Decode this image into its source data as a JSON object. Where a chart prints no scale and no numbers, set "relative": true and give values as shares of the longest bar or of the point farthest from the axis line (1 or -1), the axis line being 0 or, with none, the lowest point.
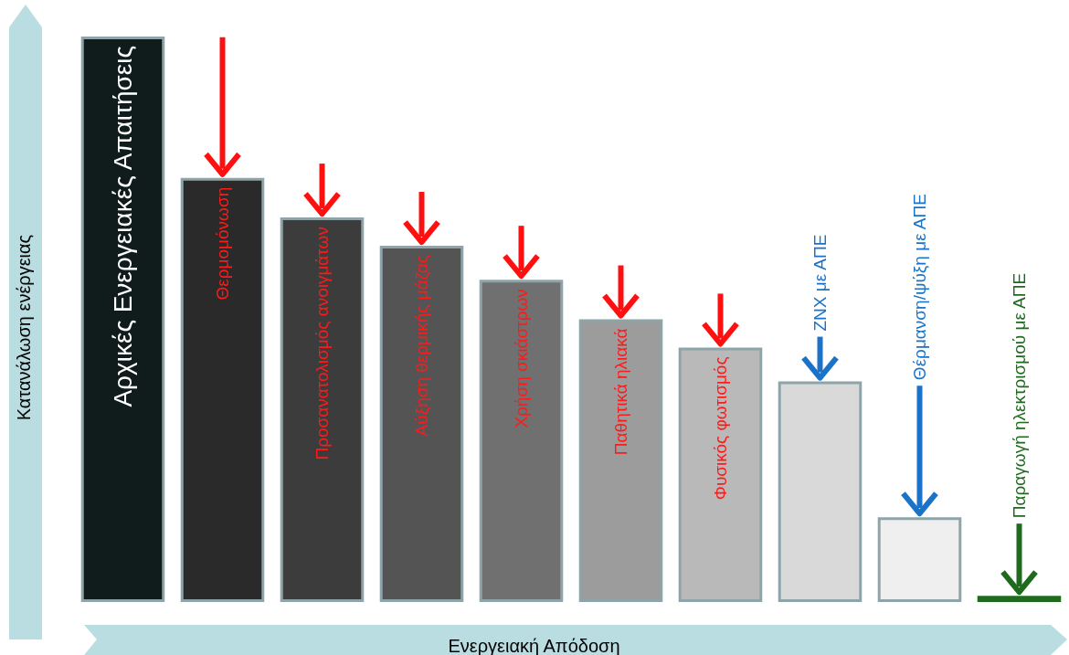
{
  "chart_data": {
    "type": "bar",
    "relative": true,
    "xlabel": "Ενεργειακή Απόδοση",
    "ylabel": "Κατανάλωση ενέργειας",
    "categories": [
      "Αρχικές Ενεργειακές Απαιτήσεις",
      "Θερμομόνωση",
      "Προσανατολισμός ανοιγμάτων",
      "Αύξηση θερμικής μάζας",
      "Χρήση σκιάστρων",
      "Παθητικά ηλιακά",
      "Φυσικός φωτισμός",
      "ΖΝΧ με ΑΠΕ",
      "Θέρμανση/ψύξη με ΑΠΕ",
      "Παραγωγή ηλεκτρισμού με ΑΠΕ"
    ],
    "values": [
      1,
      0.75,
      0.68,
      0.63,
      0.57,
      0.5,
      0.45,
      0.39,
      0.15,
      0.011
    ],
    "colors": [
      "#101c1c",
      "#2a2a2a",
      "#3c3c3c",
      "#545454",
      "#707070",
      "#9c9c9c",
      "#b9b9b9",
      "#d9d9d9",
      "#efefef",
      "#1e6b1e"
    ]
  }
}
